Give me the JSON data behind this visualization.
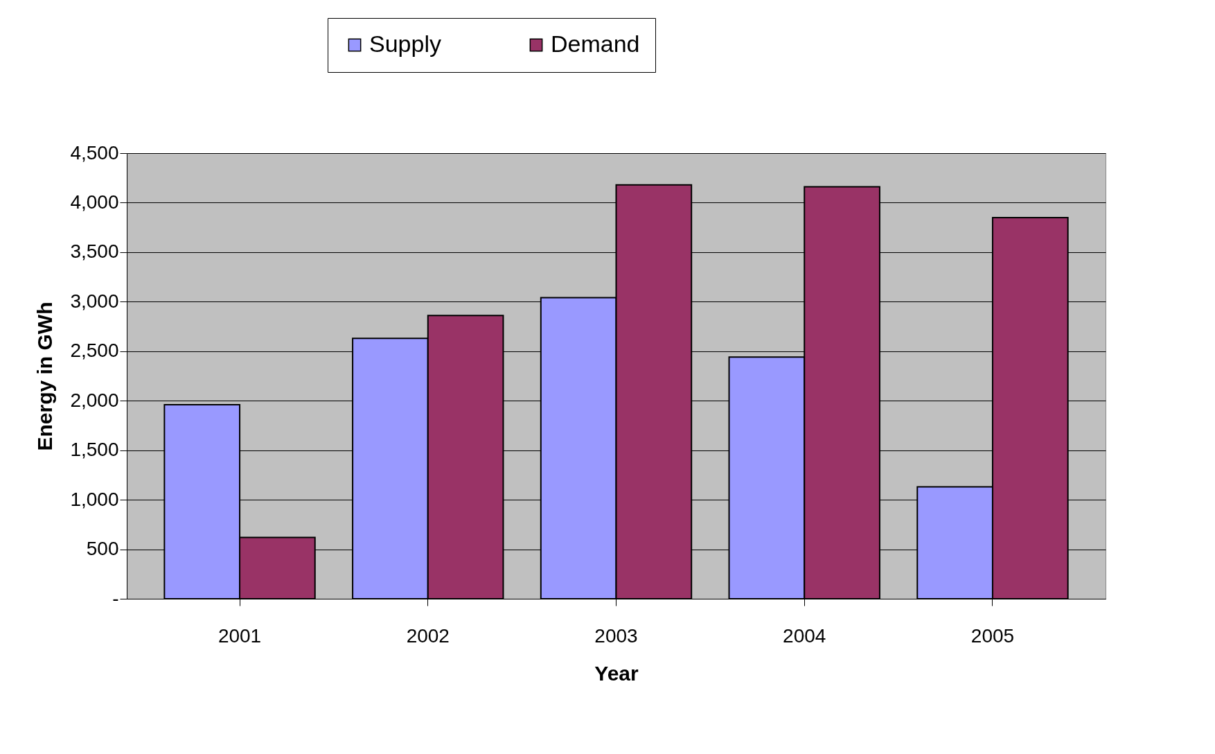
{
  "chart_data": {
    "type": "bar",
    "xlabel": "Year",
    "ylabel": "Energy in GWh",
    "categories": [
      "2001",
      "2002",
      "2003",
      "2004",
      "2005"
    ],
    "series": [
      {
        "name": "Supply",
        "color": "#9999ff",
        "values": [
          1960,
          2630,
          3040,
          2440,
          1130
        ]
      },
      {
        "name": "Demand",
        "color": "#993366",
        "values": [
          620,
          2860,
          4180,
          4160,
          3850
        ]
      }
    ],
    "ylim": [
      0,
      4500
    ],
    "yticks": [
      {
        "value": 0,
        "label": "-"
      },
      500,
      {
        "value": 1000,
        "label": "1,000"
      },
      {
        "value": 1500,
        "label": "1,500"
      },
      {
        "value": 2000,
        "label": "2,000"
      },
      {
        "value": 2500,
        "label": "2,500"
      },
      {
        "value": 3000,
        "label": "3,000"
      },
      {
        "value": 3500,
        "label": "3,500"
      },
      {
        "value": 4000,
        "label": "4,000"
      },
      {
        "value": 4500,
        "label": "4,500"
      }
    ],
    "grid": "y",
    "legend": "top"
  }
}
